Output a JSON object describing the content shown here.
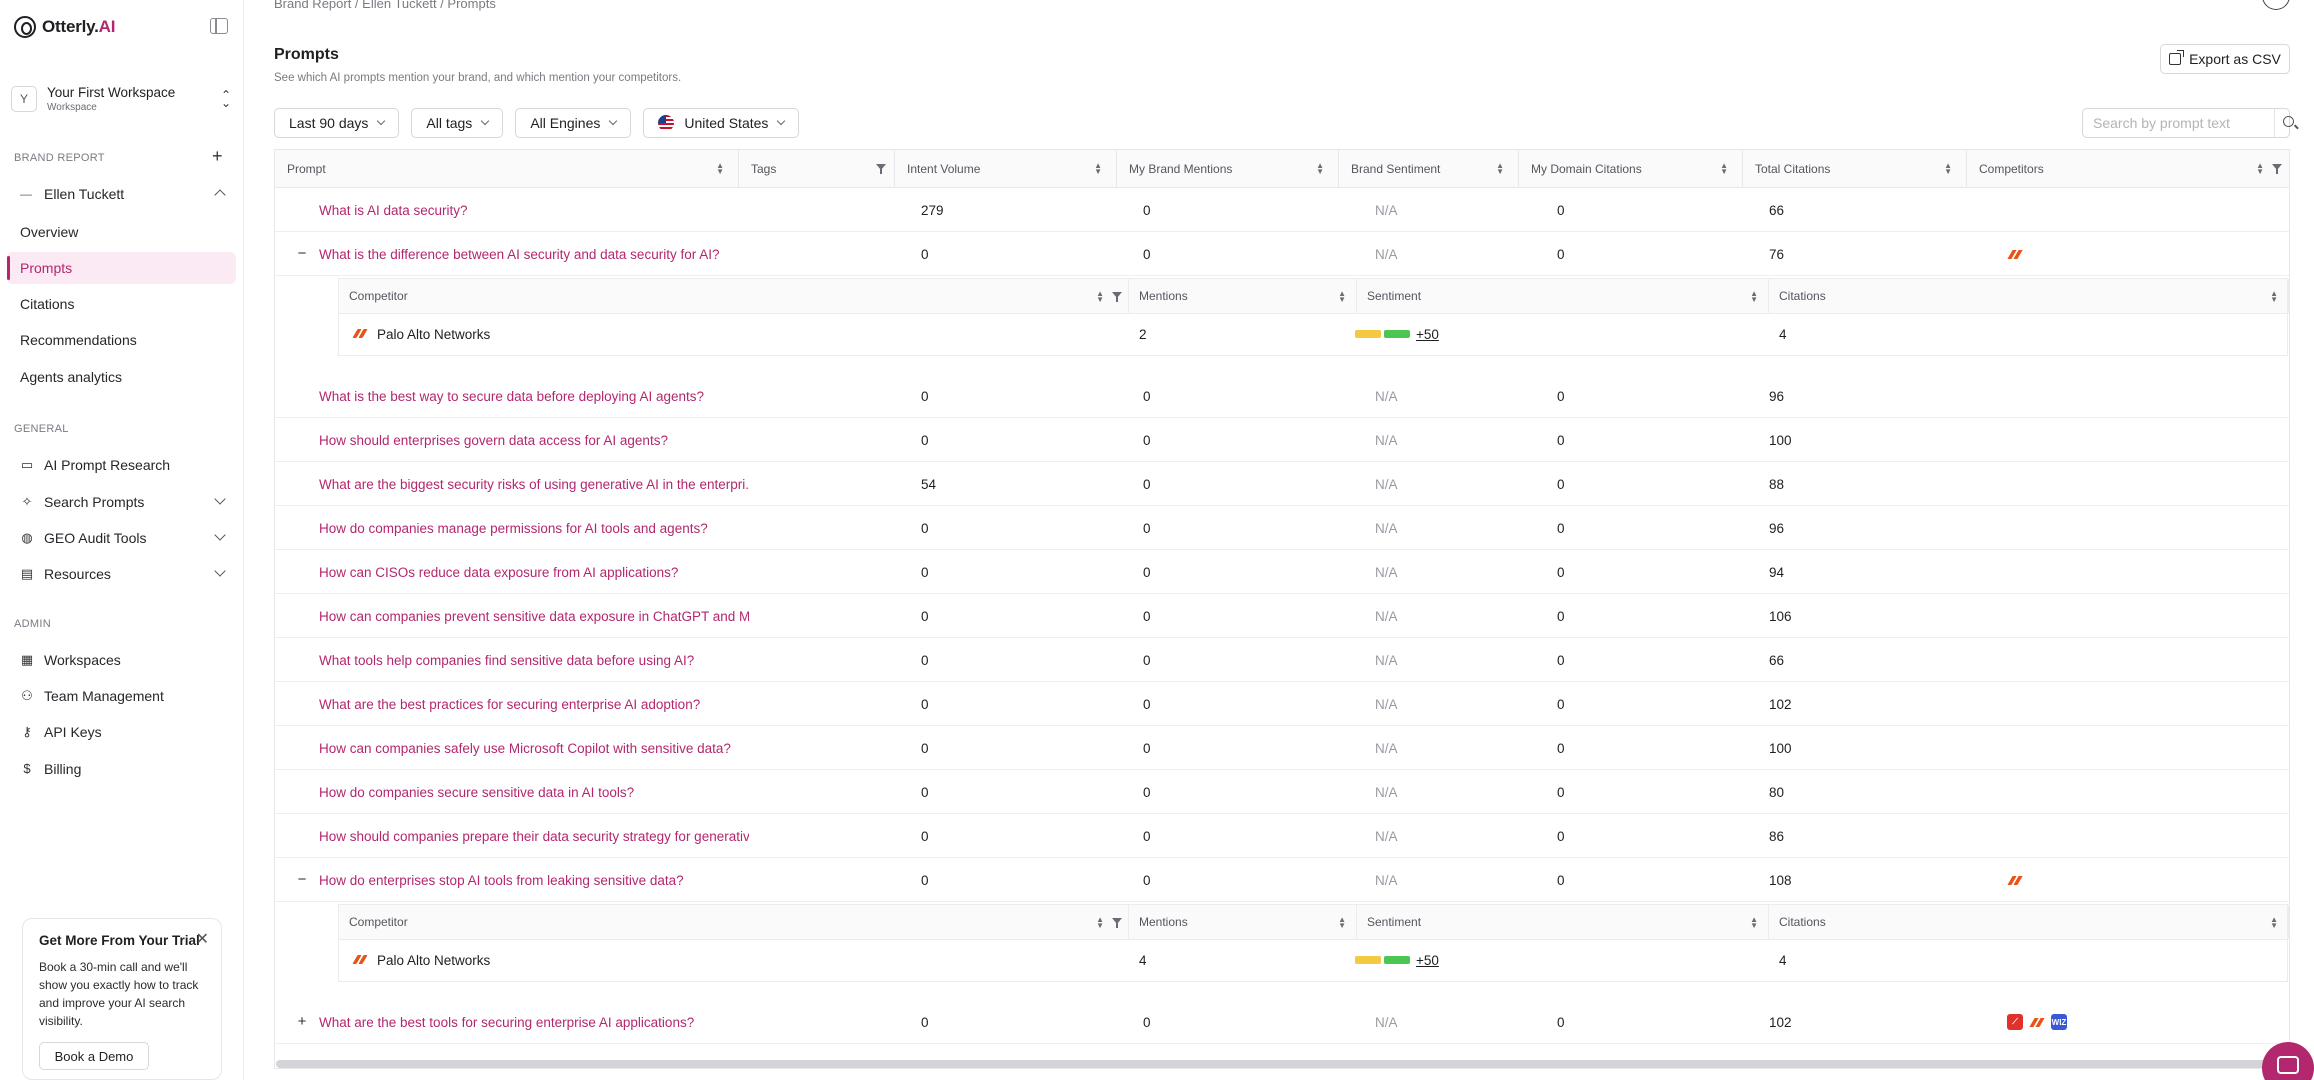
{
  "app": {
    "logo_main": "Otterly.",
    "logo_ai": "AI"
  },
  "workspace": {
    "initial": "Y",
    "name": "Your First Workspace",
    "sub": "Workspace"
  },
  "sidebar": {
    "brand_report_label": "BRAND REPORT",
    "brand_name": "Ellen Tuckett",
    "brand_items": [
      {
        "label": "Overview"
      },
      {
        "label": "Prompts"
      },
      {
        "label": "Citations"
      },
      {
        "label": "Recommendations"
      },
      {
        "label": "Agents analytics"
      }
    ],
    "general_label": "GENERAL",
    "general_items": [
      {
        "label": "AI Prompt Research",
        "icon": "book-icon"
      },
      {
        "label": "Search Prompts",
        "icon": "sparkle-icon"
      },
      {
        "label": "GEO Audit Tools",
        "icon": "globe-icon"
      },
      {
        "label": "Resources",
        "icon": "file-icon"
      }
    ],
    "admin_label": "ADMIN",
    "admin_items": [
      {
        "label": "Workspaces",
        "icon": "grid-icon"
      },
      {
        "label": "Team Management",
        "icon": "users-icon"
      },
      {
        "label": "API Keys",
        "icon": "key-icon"
      },
      {
        "label": "Billing",
        "icon": "dollar-icon"
      }
    ],
    "trial": {
      "title": "Get More From Your Trial",
      "body": "Book a 30-min call and we'll show you exactly how to track and improve your AI search visibility.",
      "button": "Book a Demo"
    }
  },
  "header": {
    "breadcrumb": "Brand Report  /  Ellen Tuckett  /  Prompts",
    "title": "Prompts",
    "subtitle": "See which AI prompts mention your brand, and which mention your competitors.",
    "export_label": "Export as CSV"
  },
  "filters": {
    "date": "Last 90 days",
    "tags": "All tags",
    "engines": "All Engines",
    "country": "United States",
    "search_placeholder": "Search by prompt text"
  },
  "table": {
    "columns": [
      "Prompt",
      "Tags",
      "Intent Volume",
      "My Brand Mentions",
      "Brand Sentiment",
      "My Domain Citations",
      "Total Citations",
      "Competitors"
    ],
    "sub_columns": [
      "Competitor",
      "Mentions",
      "Sentiment",
      "Citations"
    ],
    "rows": [
      {
        "prompt": "What is AI data security?",
        "volume": "279",
        "mentions": "0",
        "sentiment": "N/A",
        "domain": "0",
        "total": "66"
      },
      {
        "prompt": "What is the difference between AI security and data security for AI?",
        "volume": "0",
        "mentions": "0",
        "sentiment": "N/A",
        "domain": "0",
        "total": "76",
        "expanded": true,
        "competitor": {
          "name": "Palo Alto Networks",
          "mentions": "2",
          "score": "+50",
          "citations": "4"
        }
      },
      {
        "prompt": "What is the best way to secure data before deploying AI agents?",
        "volume": "0",
        "mentions": "0",
        "sentiment": "N/A",
        "domain": "0",
        "total": "96"
      },
      {
        "prompt": "How should enterprises govern data access for AI agents?",
        "volume": "0",
        "mentions": "0",
        "sentiment": "N/A",
        "domain": "0",
        "total": "100"
      },
      {
        "prompt": "What are the biggest security risks of using generative AI in the enterpri...",
        "volume": "54",
        "mentions": "0",
        "sentiment": "N/A",
        "domain": "0",
        "total": "88"
      },
      {
        "prompt": "How do companies manage permissions for AI tools and agents?",
        "volume": "0",
        "mentions": "0",
        "sentiment": "N/A",
        "domain": "0",
        "total": "96"
      },
      {
        "prompt": "How can CISOs reduce data exposure from AI applications?",
        "volume": "0",
        "mentions": "0",
        "sentiment": "N/A",
        "domain": "0",
        "total": "94"
      },
      {
        "prompt": "How can companies prevent sensitive data exposure in ChatGPT and Mi...",
        "volume": "0",
        "mentions": "0",
        "sentiment": "N/A",
        "domain": "0",
        "total": "106"
      },
      {
        "prompt": "What tools help companies find sensitive data before using AI?",
        "volume": "0",
        "mentions": "0",
        "sentiment": "N/A",
        "domain": "0",
        "total": "66"
      },
      {
        "prompt": "What are the best practices for securing enterprise AI adoption?",
        "volume": "0",
        "mentions": "0",
        "sentiment": "N/A",
        "domain": "0",
        "total": "102"
      },
      {
        "prompt": "How can companies safely use Microsoft Copilot with sensitive data?",
        "volume": "0",
        "mentions": "0",
        "sentiment": "N/A",
        "domain": "0",
        "total": "100"
      },
      {
        "prompt": "How do companies secure sensitive data in AI tools?",
        "volume": "0",
        "mentions": "0",
        "sentiment": "N/A",
        "domain": "0",
        "total": "80"
      },
      {
        "prompt": "How should companies prepare their data security strategy for generativ...",
        "volume": "0",
        "mentions": "0",
        "sentiment": "N/A",
        "domain": "0",
        "total": "86"
      },
      {
        "prompt": "How do enterprises stop AI tools from leaking sensitive data?",
        "volume": "0",
        "mentions": "0",
        "sentiment": "N/A",
        "domain": "0",
        "total": "108",
        "expanded": true,
        "competitor": {
          "name": "Palo Alto Networks",
          "mentions": "4",
          "score": "+50",
          "citations": "4"
        }
      },
      {
        "prompt": "What are the best tools for securing enterprise AI applications?",
        "volume": "0",
        "mentions": "0",
        "sentiment": "N/A",
        "domain": "0",
        "total": "102",
        "collapsed": true
      }
    ]
  },
  "colors": {
    "accent": "#b3276e",
    "sentiment_yellow": "#f5c842",
    "sentiment_green": "#4cc552",
    "palo_alto": "#e8531a"
  }
}
